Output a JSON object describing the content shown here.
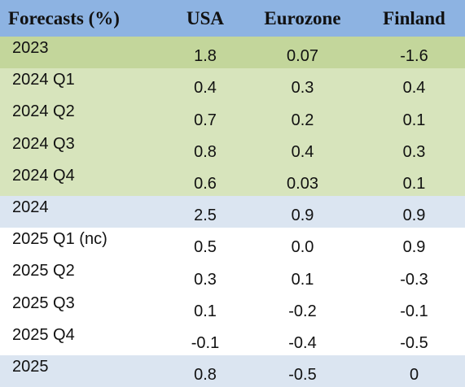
{
  "chart_data": {
    "type": "table",
    "columns": [
      "Forecasts (%)",
      "USA",
      "Eurozone",
      "Finland"
    ],
    "rows": [
      {
        "label": "2023",
        "kind": "annual-2023",
        "values": [
          "1.8",
          "0.07",
          "-1.6"
        ]
      },
      {
        "label": "2024 Q1",
        "kind": "quarter-2024",
        "values": [
          "0.4",
          "0.3",
          "0.4"
        ]
      },
      {
        "label": "2024 Q2",
        "kind": "quarter-2024",
        "values": [
          "0.7",
          "0.2",
          "0.1"
        ]
      },
      {
        "label": "2024 Q3",
        "kind": "quarter-2024",
        "values": [
          "0.8",
          "0.4",
          "0.3"
        ]
      },
      {
        "label": "2024 Q4",
        "kind": "quarter-2024",
        "values": [
          "0.6",
          "0.03",
          "0.1"
        ]
      },
      {
        "label": "2024",
        "kind": "annual-2024",
        "values": [
          "2.5",
          "0.9",
          "0.9"
        ]
      },
      {
        "label": "2025 Q1 (nc)",
        "kind": "quarter-2025",
        "values": [
          "0.5",
          "0.0",
          "0.9"
        ]
      },
      {
        "label": "2025 Q2",
        "kind": "quarter-2025",
        "values": [
          "0.3",
          "0.1",
          "-0.3"
        ]
      },
      {
        "label": "2025 Q3",
        "kind": "quarter-2025",
        "values": [
          "0.1",
          "-0.2",
          "-0.1"
        ]
      },
      {
        "label": "2025 Q4",
        "kind": "quarter-2025",
        "values": [
          "-0.1",
          "-0.4",
          "-0.5"
        ]
      },
      {
        "label": "2025",
        "kind": "annual-2025",
        "values": [
          "0.8",
          "-0.5",
          "0"
        ]
      }
    ]
  },
  "colors": {
    "header": "#8db3e2",
    "annual_2023": "#c3d69b",
    "quarter_2024": "#d7e4bc",
    "annual_2024_2025": "#dbe5f1",
    "quarter_2025": "#ffffff"
  }
}
